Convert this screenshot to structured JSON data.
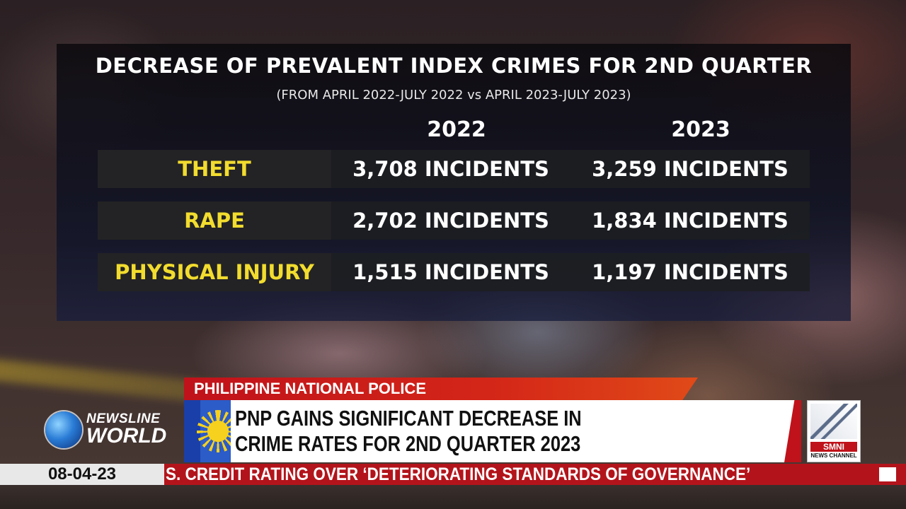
{
  "graphic": {
    "title": "DECREASE OF PREVALENT INDEX CRIMES FOR 2ND QUARTER",
    "subtitle": "(FROM APRIL 2022-JULY 2022 vs APRIL 2023-JULY 2023)",
    "years": [
      "2022",
      "2023"
    ],
    "rows": [
      {
        "label": "THEFT",
        "v2022": "3,708 INCIDENTS",
        "v2023": "3,259 INCIDENTS"
      },
      {
        "label": "RAPE",
        "v2022": "2,702 INCIDENTS",
        "v2023": "1,834 INCIDENTS"
      },
      {
        "label": "PHYSICAL INJURY",
        "v2022": "1,515 INCIDENTS",
        "v2023": "1,197 INCIDENTS"
      }
    ],
    "label_color": "#f2dc2e"
  },
  "lower_third": {
    "kicker": "PHILIPPINE NATIONAL POLICE",
    "headline_line1": "PNP GAINS SIGNIFICANT DECREASE IN",
    "headline_line2": "CRIME RATES FOR 2ND QUARTER 2023",
    "show_top": "NEWSLINE",
    "show_bottom": "WORLD",
    "channel_logo": "SMNI",
    "channel_sub": "NEWS CHANNEL",
    "accent_color": "#c0121a"
  },
  "ticker": {
    "date": "08-04-23",
    "text": "S. CREDIT RATING OVER ‘DETERIORATING STANDARDS OF GOVERNANCE’"
  }
}
